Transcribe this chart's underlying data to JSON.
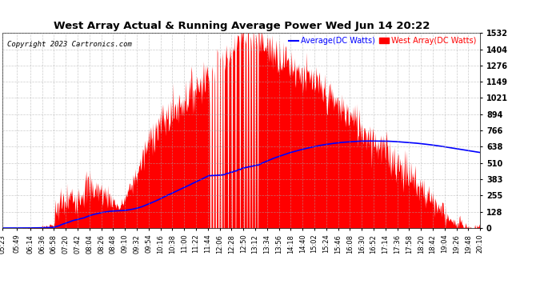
{
  "title": "West Array Actual & Running Average Power Wed Jun 14 20:22",
  "copyright": "Copyright 2023 Cartronics.com",
  "legend_avg": "Average(DC Watts)",
  "legend_west": "West Array(DC Watts)",
  "ymin": 0.0,
  "ymax": 1531.6,
  "yticks": [
    0.0,
    127.6,
    255.3,
    382.9,
    510.5,
    638.2,
    765.8,
    893.5,
    1021.1,
    1148.7,
    1276.4,
    1404.0,
    1531.6
  ],
  "background_color": "#ffffff",
  "grid_color": "#aaaaaa",
  "bar_color": "#ff0000",
  "avg_color": "#0000ff",
  "title_color": "#000000",
  "copyright_color": "#000000",
  "legend_avg_color": "#0000ff",
  "legend_west_color": "#ff0000"
}
